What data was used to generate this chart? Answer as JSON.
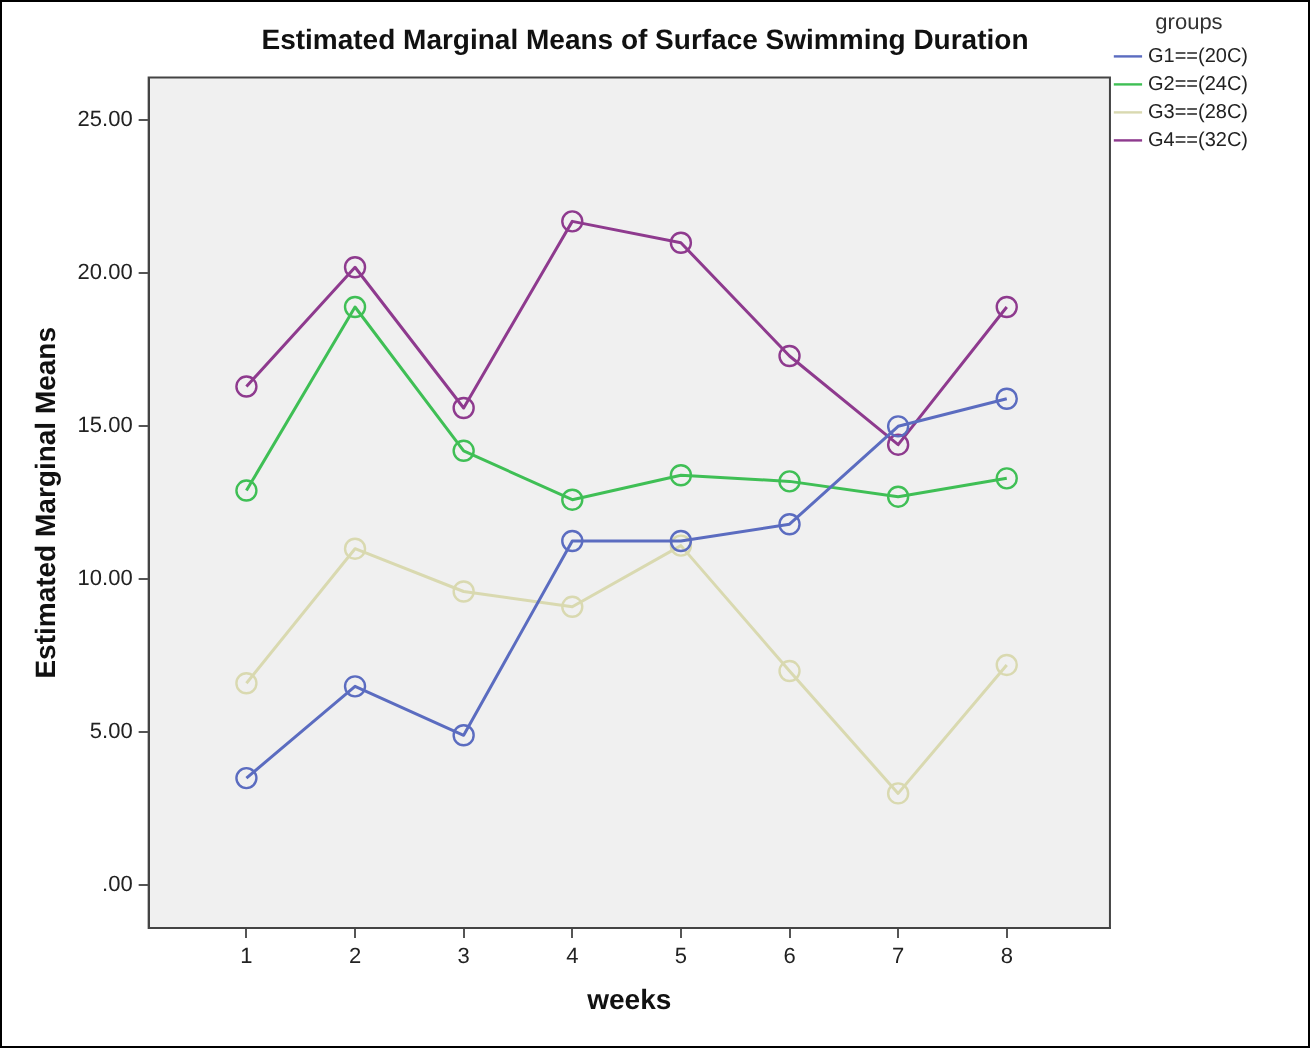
{
  "chart_data": {
    "type": "line",
    "title": "Estimated Marginal Means of Surface Swimming Duration",
    "xlabel": "weeks",
    "ylabel": "Estimated Marginal Means",
    "legend_title": "groups",
    "x": [
      1,
      2,
      3,
      4,
      5,
      6,
      7,
      8
    ],
    "xlim": [
      0.1,
      8.95
    ],
    "xticks": [
      1,
      2,
      3,
      4,
      5,
      6,
      7,
      8
    ],
    "ylim": [
      -1.4,
      26.4
    ],
    "yticks": [
      {
        "value": 0,
        "label": ".00"
      },
      {
        "value": 5,
        "label": "5.00"
      },
      {
        "value": 10,
        "label": "10.00"
      },
      {
        "value": 15,
        "label": "15.00"
      },
      {
        "value": 20,
        "label": "20.00"
      },
      {
        "value": 25,
        "label": "25.00"
      }
    ],
    "series": [
      {
        "name": "G1==(20C)",
        "color": "#5b6cc0",
        "values": [
          3.5,
          6.5,
          4.9,
          11.25,
          11.25,
          11.8,
          15.0,
          15.9
        ]
      },
      {
        "name": "G2==(24C)",
        "color": "#3fbf55",
        "values": [
          12.9,
          18.9,
          14.2,
          12.6,
          13.4,
          13.2,
          12.7,
          13.3
        ]
      },
      {
        "name": "G3==(28C)",
        "color": "#d9d9b0",
        "values": [
          6.6,
          11.0,
          9.6,
          9.1,
          11.1,
          7.0,
          3.0,
          7.2
        ]
      },
      {
        "name": "G4==(32C)",
        "color": "#8e3a8e",
        "values": [
          16.3,
          20.2,
          15.6,
          21.7,
          21.0,
          17.3,
          14.4,
          18.9
        ]
      }
    ],
    "legend": "top right",
    "grid": false,
    "marker": "circle",
    "line_style": "solid"
  }
}
